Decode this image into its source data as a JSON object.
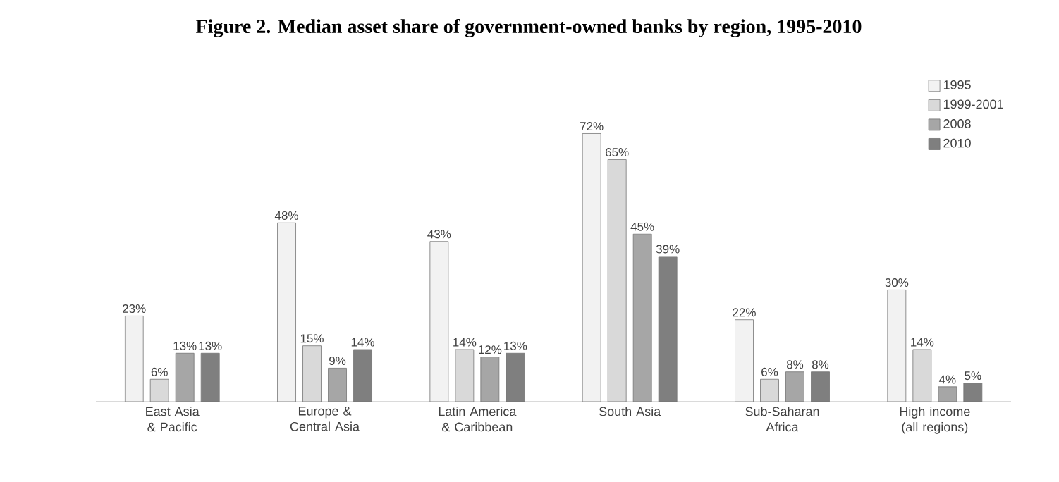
{
  "chart_data": {
    "type": "bar",
    "title": "Figure 2. Median asset share of government-owned banks by region, 1995-2010",
    "categories": [
      "East Asia & Pacific",
      "Europe & Central Asia",
      "Latin America & Caribbean",
      "South Asia",
      "Sub-Saharan Africa",
      "High income (all regions)"
    ],
    "series": [
      {
        "name": "1995",
        "color": "#f2f2f2",
        "values": [
          23,
          48,
          43,
          72,
          22,
          30
        ],
        "value_labels": [
          "23%",
          "48%",
          "43%",
          "72%",
          "22%",
          "30%"
        ]
      },
      {
        "name": "1999-2001",
        "color": "#d9d9d9",
        "values": [
          6,
          15,
          14,
          65,
          6,
          14
        ],
        "value_labels": [
          "6%",
          "15%",
          "14%",
          "65%",
          "6%",
          "14%"
        ]
      },
      {
        "name": "2008",
        "color": "#a6a6a6",
        "values": [
          13,
          9,
          12,
          45,
          8,
          4
        ],
        "value_labels": [
          "13%",
          "9%",
          "12%",
          "45%",
          "8%",
          "4%"
        ]
      },
      {
        "name": "2010",
        "color": "#7f7f7f",
        "values": [
          13,
          14,
          13,
          39,
          8,
          5
        ],
        "value_labels": [
          "13%",
          "14%",
          "13%",
          "39%",
          "8%",
          "5%"
        ]
      }
    ],
    "legend": "top right"
  }
}
